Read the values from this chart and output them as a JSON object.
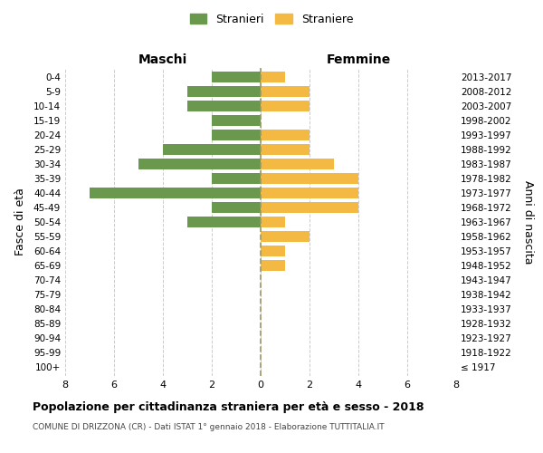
{
  "age_groups": [
    "100+",
    "95-99",
    "90-94",
    "85-89",
    "80-84",
    "75-79",
    "70-74",
    "65-69",
    "60-64",
    "55-59",
    "50-54",
    "45-49",
    "40-44",
    "35-39",
    "30-34",
    "25-29",
    "20-24",
    "15-19",
    "10-14",
    "5-9",
    "0-4"
  ],
  "birth_years": [
    "≤ 1917",
    "1918-1922",
    "1923-1927",
    "1928-1932",
    "1933-1937",
    "1938-1942",
    "1943-1947",
    "1948-1952",
    "1953-1957",
    "1958-1962",
    "1963-1967",
    "1968-1972",
    "1973-1977",
    "1978-1982",
    "1983-1987",
    "1988-1992",
    "1993-1997",
    "1998-2002",
    "2003-2007",
    "2008-2012",
    "2013-2017"
  ],
  "males": [
    0,
    0,
    0,
    0,
    0,
    0,
    0,
    0,
    0,
    0,
    3,
    2,
    7,
    2,
    5,
    4,
    2,
    2,
    3,
    3,
    2
  ],
  "females": [
    0,
    0,
    0,
    0,
    0,
    0,
    0,
    1,
    1,
    2,
    1,
    4,
    4,
    4,
    3,
    2,
    2,
    0,
    2,
    2,
    1
  ],
  "male_color": "#6a994e",
  "female_color": "#f4b942",
  "grid_color": "#cccccc",
  "bg_color": "#ffffff",
  "title": "Popolazione per cittadinanza straniera per età e sesso - 2018",
  "subtitle": "COMUNE DI DRIZZONA (CR) - Dati ISTAT 1° gennaio 2018 - Elaborazione TUTTITALIA.IT",
  "xlabel_left": "Maschi",
  "xlabel_right": "Femmine",
  "ylabel_left": "Fasce di età",
  "ylabel_right": "Anni di nascita",
  "legend_male": "Stranieri",
  "legend_female": "Straniere",
  "xlim": 8,
  "center_line_color": "#999966"
}
